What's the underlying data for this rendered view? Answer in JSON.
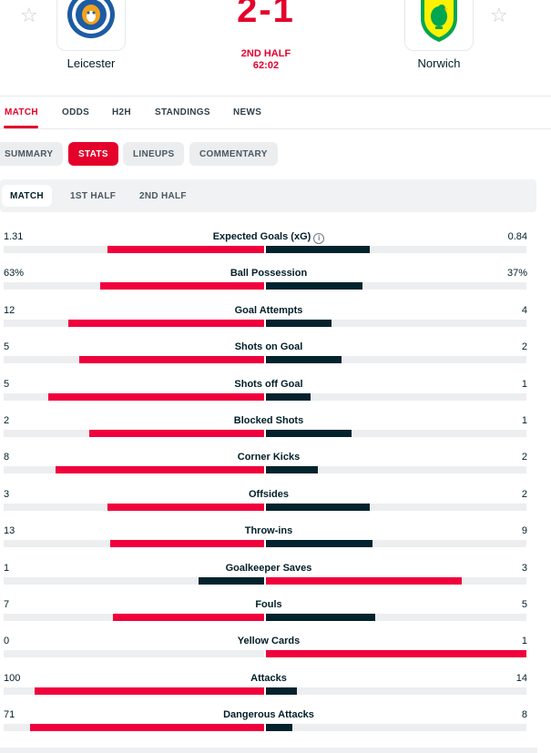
{
  "match": {
    "home": {
      "name": "Leicester",
      "favorite_icon": "star-outline-icon",
      "logo_icon": "leicester-city-crest-icon"
    },
    "away": {
      "name": "Norwich",
      "favorite_icon": "star-outline-icon",
      "logo_icon": "norwich-city-crest-icon"
    },
    "score": "2-1",
    "period": "2ND HALF",
    "clock": "62:02"
  },
  "tabs": [
    {
      "label": "MATCH",
      "active": true
    },
    {
      "label": "ODDS",
      "active": false
    },
    {
      "label": "H2H",
      "active": false
    },
    {
      "label": "STANDINGS",
      "active": false
    },
    {
      "label": "NEWS",
      "active": false
    }
  ],
  "subtabs": [
    {
      "label": "SUMMARY",
      "active": false
    },
    {
      "label": "STATS",
      "active": true
    },
    {
      "label": "LINEUPS",
      "active": false
    },
    {
      "label": "COMMENTARY",
      "active": false
    }
  ],
  "halves": [
    {
      "label": "MATCH",
      "active": true
    },
    {
      "label": "1ST HALF",
      "active": false
    },
    {
      "label": "2ND HALF",
      "active": false
    }
  ],
  "colors": {
    "accent": "#e4002b",
    "home_bar": "#f0003c",
    "away_bar": "#00232d",
    "track": "#eceef0"
  },
  "stats": [
    {
      "name": "Expected Goals (xG)",
      "home": "1.31",
      "away": "0.84",
      "home_fill": 0.6,
      "away_fill": 0.4,
      "info": true
    },
    {
      "name": "Ball Possession",
      "home": "63%",
      "away": "37%",
      "home_fill": 0.63,
      "away_fill": 0.37
    },
    {
      "name": "Goal Attempts",
      "home": "12",
      "away": "4",
      "home_fill": 0.75,
      "away_fill": 0.25
    },
    {
      "name": "Shots on Goal",
      "home": "5",
      "away": "2",
      "home_fill": 0.71,
      "away_fill": 0.29
    },
    {
      "name": "Shots off Goal",
      "home": "5",
      "away": "1",
      "home_fill": 0.83,
      "away_fill": 0.17
    },
    {
      "name": "Blocked Shots",
      "home": "2",
      "away": "1",
      "home_fill": 0.67,
      "away_fill": 0.33
    },
    {
      "name": "Corner Kicks",
      "home": "8",
      "away": "2",
      "home_fill": 0.8,
      "away_fill": 0.2
    },
    {
      "name": "Offsides",
      "home": "3",
      "away": "2",
      "home_fill": 0.6,
      "away_fill": 0.4
    },
    {
      "name": "Throw-ins",
      "home": "13",
      "away": "9",
      "home_fill": 0.59,
      "away_fill": 0.41
    },
    {
      "name": "Goalkeeper Saves",
      "home": "1",
      "away": "3",
      "home_fill": 0.25,
      "away_fill": 0.75
    },
    {
      "name": "Fouls",
      "home": "7",
      "away": "5",
      "home_fill": 0.58,
      "away_fill": 0.42
    },
    {
      "name": "Yellow Cards",
      "home": "0",
      "away": "1",
      "home_fill": 0.0,
      "away_fill": 1.0
    },
    {
      "name": "Attacks",
      "home": "100",
      "away": "14",
      "home_fill": 0.88,
      "away_fill": 0.12
    },
    {
      "name": "Dangerous Attacks",
      "home": "71",
      "away": "8",
      "home_fill": 0.9,
      "away_fill": 0.1
    }
  ]
}
